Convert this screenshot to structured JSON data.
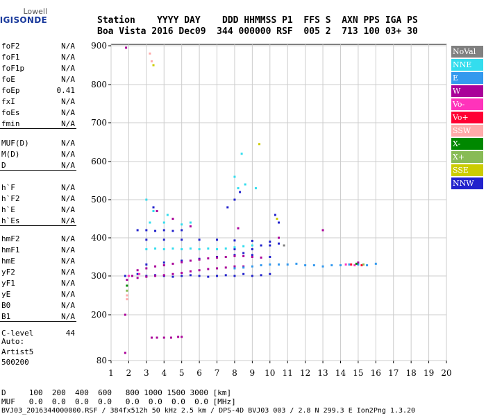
{
  "logo": {
    "line1": "Lowell",
    "line2": "DIGISONDE"
  },
  "header": {
    "row1": "Station    YYYY DAY    DDD HHMMSS P1  FFS S  AXN PPS IGA PS",
    "row2": "Boa Vista 2016 Dec09  344 000000 RSF  005 2  713 100 03+ 30"
  },
  "params": {
    "group1": [
      {
        "name": "foF2",
        "value": "N/A"
      },
      {
        "name": "foF1",
        "value": "N/A"
      },
      {
        "name": "foF1p",
        "value": "N/A"
      },
      {
        "name": "foE",
        "value": "N/A"
      },
      {
        "name": "foEp",
        "value": "0.41"
      },
      {
        "name": "fxI",
        "value": "N/A"
      },
      {
        "name": "foEs",
        "value": "N/A"
      },
      {
        "name": "fmin",
        "value": "N/A"
      }
    ],
    "group2": [
      {
        "name": "MUF(D)",
        "value": "N/A"
      },
      {
        "name": "M(D)",
        "value": "N/A"
      },
      {
        "name": "D",
        "value": "N/A"
      }
    ],
    "group3": [
      {
        "name": "h`F",
        "value": "N/A"
      },
      {
        "name": "h`F2",
        "value": "N/A"
      },
      {
        "name": "h`E",
        "value": "N/A"
      },
      {
        "name": "h`Es",
        "value": "N/A"
      }
    ],
    "group4": [
      {
        "name": "hmF2",
        "value": "N/A"
      },
      {
        "name": "hmF1",
        "value": "N/A"
      },
      {
        "name": "hmE",
        "value": "N/A"
      },
      {
        "name": "yF2",
        "value": "N/A"
      },
      {
        "name": "yF1",
        "value": "N/A"
      },
      {
        "name": "yE",
        "value": "N/A"
      },
      {
        "name": "B0",
        "value": "N/A"
      },
      {
        "name": "B1",
        "value": "N/A"
      }
    ],
    "group5": [
      {
        "name": "C-level",
        "value": "44"
      }
    ],
    "auto": [
      "Auto:",
      "Artist5",
      "500200"
    ]
  },
  "legend": [
    {
      "label": "NoVal",
      "color": "#808080"
    },
    {
      "label": "NNE",
      "color": "#33ddee"
    },
    {
      "label": "E",
      "color": "#3399ee"
    },
    {
      "label": "W",
      "color": "#aa0099"
    },
    {
      "label": "Vo-",
      "color": "#ff33bb"
    },
    {
      "label": "Vo+",
      "color": "#ff0033"
    },
    {
      "label": "SSW",
      "color": "#ffaaaa"
    },
    {
      "label": "X-",
      "color": "#008800"
    },
    {
      "label": "X+",
      "color": "#88bb55"
    },
    {
      "label": "SSE",
      "color": "#cccc00"
    },
    {
      "label": "NNW",
      "color": "#2222cc"
    }
  ],
  "footer": {
    "line1": "D     100  200  400  600   800 1000 1500 3000 [km]",
    "line2": "MUF   0.0  0.0  0.0  0.0   0.0  0.0  0.0  0.0 [MHz]",
    "line3": "BVJ03_2016344000000.RSF / 384fx512h 50 kHz 2.5 km / DPS-4D BVJ03 003 / 2.8 N 299.3 E Ion2Png 1.3.20"
  },
  "chart_data": {
    "type": "scatter",
    "title": "",
    "xlabel": "",
    "ylabel": "",
    "xlim": [
      1,
      20
    ],
    "ylim": [
      80,
      900
    ],
    "x_ticks": [
      1,
      2,
      3,
      4,
      5,
      6,
      7,
      8,
      9,
      10,
      11,
      12,
      13,
      14,
      15,
      16,
      17,
      18,
      19,
      20
    ],
    "y_ticks": [
      80,
      200,
      300,
      400,
      500,
      600,
      700,
      800,
      900
    ],
    "grid": true,
    "legend_position": "right",
    "series": [
      {
        "name": "NNW",
        "color": "#2222cc",
        "points": [
          [
            1.8,
            300
          ],
          [
            2.5,
            305
          ],
          [
            3,
            300
          ],
          [
            3.5,
            302
          ],
          [
            4,
            300
          ],
          [
            4.5,
            298
          ],
          [
            5,
            300
          ],
          [
            5.5,
            302
          ],
          [
            6,
            300
          ],
          [
            6.5,
            298
          ],
          [
            7,
            300
          ],
          [
            7.5,
            302
          ],
          [
            8,
            300
          ],
          [
            8.5,
            305
          ],
          [
            9,
            300
          ],
          [
            9.5,
            302
          ],
          [
            10,
            305
          ],
          [
            2.5,
            420
          ],
          [
            3,
            420
          ],
          [
            3.5,
            418
          ],
          [
            4,
            420
          ],
          [
            4.5,
            418
          ],
          [
            5,
            420
          ],
          [
            3,
            395
          ],
          [
            4,
            395
          ],
          [
            5,
            395
          ],
          [
            6,
            395
          ],
          [
            7,
            395
          ],
          [
            8,
            393
          ],
          [
            9,
            392
          ],
          [
            10,
            390
          ],
          [
            3,
            330
          ],
          [
            4,
            335
          ],
          [
            5,
            340
          ],
          [
            6,
            345
          ],
          [
            7,
            350
          ],
          [
            8,
            355
          ],
          [
            9,
            355
          ],
          [
            10,
            350
          ],
          [
            8,
            370
          ],
          [
            8.5,
            360
          ],
          [
            9,
            370
          ],
          [
            9.5,
            380
          ],
          [
            10,
            380
          ],
          [
            10.5,
            385
          ],
          [
            10.3,
            460
          ],
          [
            10.5,
            440
          ],
          [
            8,
            500
          ],
          [
            8.3,
            520
          ],
          [
            7.6,
            480
          ],
          [
            3.4,
            480
          ]
        ]
      },
      {
        "name": "W",
        "color": "#aa0099",
        "points": [
          [
            1.85,
            895
          ],
          [
            1.8,
            200
          ],
          [
            1.8,
            100
          ],
          [
            1.9,
            290
          ],
          [
            2.2,
            300
          ],
          [
            2.5,
            315
          ],
          [
            3,
            320
          ],
          [
            3.5,
            325
          ],
          [
            4,
            328
          ],
          [
            4.5,
            332
          ],
          [
            5,
            336
          ],
          [
            5.5,
            340
          ],
          [
            6,
            343
          ],
          [
            6.5,
            346
          ],
          [
            7,
            348
          ],
          [
            7.5,
            350
          ],
          [
            8,
            352
          ],
          [
            8.5,
            352
          ],
          [
            9,
            350
          ],
          [
            9.5,
            348
          ],
          [
            2.5,
            295
          ],
          [
            3,
            298
          ],
          [
            3.5,
            300
          ],
          [
            4,
            302
          ],
          [
            4.5,
            305
          ],
          [
            5,
            308
          ],
          [
            5.5,
            312
          ],
          [
            6,
            315
          ],
          [
            6.5,
            318
          ],
          [
            7,
            320
          ],
          [
            7.5,
            322
          ],
          [
            8,
            325
          ],
          [
            8.5,
            325
          ],
          [
            3.3,
            140
          ],
          [
            3.6,
            140
          ],
          [
            4,
            140
          ],
          [
            4.4,
            140
          ],
          [
            4.8,
            142
          ],
          [
            5,
            142
          ],
          [
            3.6,
            470
          ],
          [
            4.5,
            450
          ],
          [
            5.5,
            430
          ],
          [
            8.2,
            425
          ],
          [
            10.5,
            400
          ],
          [
            13,
            420
          ],
          [
            14.5,
            330
          ],
          [
            15,
            335
          ]
        ]
      },
      {
        "name": "NNE",
        "color": "#33ddee",
        "points": [
          [
            3,
            370
          ],
          [
            3.5,
            372
          ],
          [
            4,
            370
          ],
          [
            4.5,
            372
          ],
          [
            5,
            370
          ],
          [
            5.5,
            372
          ],
          [
            6,
            370
          ],
          [
            6.5,
            372
          ],
          [
            7,
            370
          ],
          [
            7.5,
            372
          ],
          [
            8,
            375
          ],
          [
            8.5,
            378
          ],
          [
            9,
            380
          ],
          [
            3.2,
            440
          ],
          [
            4,
            440
          ],
          [
            5,
            435
          ],
          [
            5.5,
            440
          ],
          [
            8,
            560
          ],
          [
            8.2,
            530
          ],
          [
            8.6,
            540
          ],
          [
            9.2,
            530
          ],
          [
            8.4,
            620
          ],
          [
            3,
            500
          ],
          [
            3.4,
            470
          ],
          [
            4.2,
            460
          ]
        ]
      },
      {
        "name": "E",
        "color": "#3399ee",
        "points": [
          [
            8,
            320
          ],
          [
            8.5,
            322
          ],
          [
            9,
            325
          ],
          [
            9.5,
            328
          ],
          [
            10,
            330
          ],
          [
            10.5,
            330
          ],
          [
            11,
            330
          ],
          [
            11.5,
            332
          ],
          [
            12,
            328
          ],
          [
            12.5,
            328
          ],
          [
            13,
            325
          ],
          [
            13.5,
            328
          ],
          [
            14,
            328
          ],
          [
            14.5,
            330
          ],
          [
            15,
            330
          ],
          [
            15.5,
            328
          ],
          [
            16,
            332
          ]
        ]
      },
      {
        "name": "Vo-",
        "color": "#ff33bb",
        "points": [
          [
            2,
            300
          ],
          [
            2.6,
            305
          ],
          [
            14.3,
            330
          ],
          [
            14.8,
            328
          ]
        ]
      },
      {
        "name": "Vo+",
        "color": "#ff0033",
        "points": [
          [
            14.6,
            330
          ],
          [
            15.2,
            328
          ]
        ]
      },
      {
        "name": "SSW",
        "color": "#ffaaaa",
        "points": [
          [
            3.2,
            880
          ],
          [
            3.3,
            860
          ],
          [
            1.9,
            250
          ],
          [
            1.9,
            240
          ]
        ]
      },
      {
        "name": "X-",
        "color": "#008800",
        "points": [
          [
            1.9,
            275
          ],
          [
            14.9,
            332
          ]
        ]
      },
      {
        "name": "X+",
        "color": "#88bb55",
        "points": [
          [
            1.9,
            262
          ],
          [
            15.3,
            330
          ]
        ]
      },
      {
        "name": "SSE",
        "color": "#cccc00",
        "points": [
          [
            9.4,
            645
          ],
          [
            3.4,
            850
          ],
          [
            10.4,
            450
          ]
        ]
      },
      {
        "name": "NoVal",
        "color": "#808080",
        "points": [
          [
            10.8,
            380
          ]
        ]
      }
    ]
  }
}
